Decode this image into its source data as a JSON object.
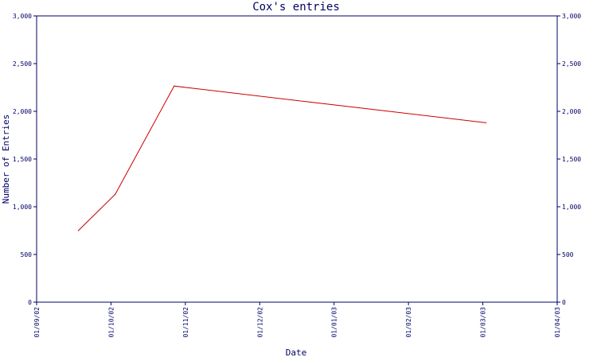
{
  "chart_data": {
    "type": "line",
    "title": "Cox's entries",
    "xlabel": "Date",
    "ylabel": "Number of Entries",
    "x_ticks": [
      "01/09/02",
      "01/10/02",
      "01/11/02",
      "01/12/02",
      "01/01/03",
      "01/02/03",
      "01/03/03",
      "01/04/03"
    ],
    "y_ticks": [
      "0",
      "500",
      "1,000",
      "1,500",
      "2,000",
      "2,500",
      "3,000"
    ],
    "ylim": [
      0,
      3000
    ],
    "xlim": [
      "2002-09-01",
      "2003-04-01"
    ],
    "grid": false,
    "series": [
      {
        "color": "#cc0000",
        "points": [
          {
            "x": "2002-09-18",
            "y": 750
          },
          {
            "x": "2002-10-03",
            "y": 1130
          },
          {
            "x": "2002-10-27",
            "y": 2265
          },
          {
            "x": "2003-03-03",
            "y": 1880
          }
        ]
      }
    ]
  },
  "colors": {
    "axis": "#000066",
    "text": "#000066",
    "line": "#cc0000",
    "background": "#ffffff"
  }
}
